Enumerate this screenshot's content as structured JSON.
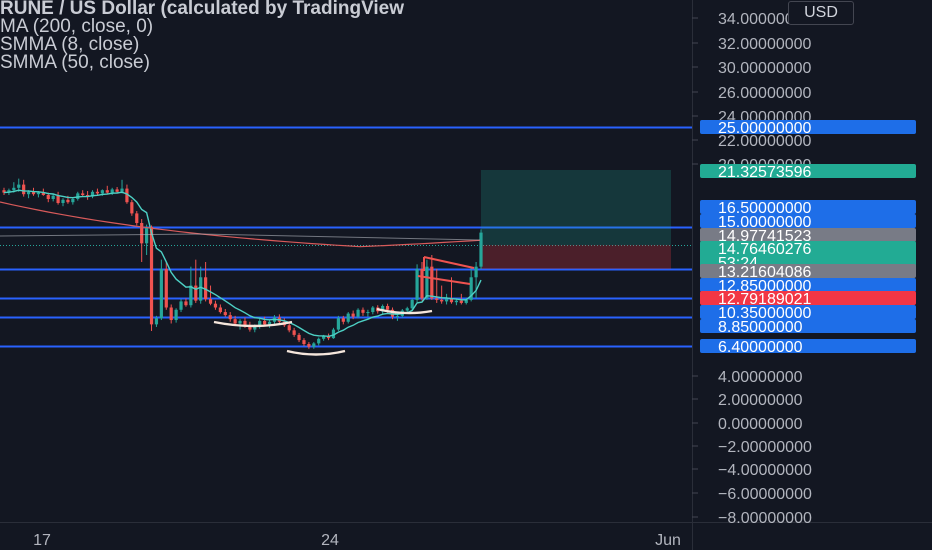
{
  "legend": {
    "title": "RUNE / US Dollar (calculated by TradingView",
    "ma": "MA (200, close, 0)",
    "smma8": "SMMA (8, close)",
    "smma50": "SMMA (50, close)"
  },
  "currency": "USD",
  "colors": {
    "background": "#131722",
    "up": "#26a69a",
    "down": "#ef5350",
    "ma200": "#b2b5be",
    "smma8": "#4dd0c4",
    "smma50": "#d85a5a",
    "hline": "#2962ff",
    "tag_blue": "#1e6ee8",
    "tag_gray": "#787b86",
    "tag_green": "#22ab94",
    "tag_red": "#f23645",
    "white_mark": "#f5e6dc"
  },
  "chart_data": {
    "type": "candlestick",
    "y_axis_ticks": [
      "34.00000000",
      "32.00000000",
      "30.00000000",
      "26.00000000",
      "24.00000000",
      "22.00000000",
      "20.00000000",
      "4.00000000",
      "2.00000000",
      "0.00000000",
      "−2.00000000",
      "−4.00000000",
      "−6.00000000",
      "−8.00000000"
    ],
    "x_axis_ticks": [
      "17",
      "24",
      "Jun"
    ],
    "horizontal_levels": [
      25.0,
      15.0,
      13.1,
      12.85,
      10.35,
      8.85,
      6.4
    ],
    "price_tags": [
      {
        "label": "25.00000000",
        "value": 25.0,
        "style": "blue"
      },
      {
        "label": "21.32573596",
        "value": 21.3257,
        "style": "green"
      },
      {
        "label": "16.50000000",
        "value": 16.5,
        "style": "blue"
      },
      {
        "label": "15.00000000",
        "value": 15.0,
        "style": "blue"
      },
      {
        "label": "14.97741523",
        "value": 14.9774,
        "style": "gray"
      },
      {
        "label": "14.76460276",
        "value": 14.7646,
        "style": "green",
        "sub": "53:24"
      },
      {
        "label": "13.21604086",
        "value": 13.216,
        "style": "gray"
      },
      {
        "label": "12.85000000",
        "value": 12.85,
        "style": "blue"
      },
      {
        "label": "12.79189021",
        "value": 12.7919,
        "style": "red"
      },
      {
        "label": "10.35000000",
        "value": 10.35,
        "style": "blue"
      },
      {
        "label": "8.85000000",
        "value": 8.85,
        "style": "blue"
      },
      {
        "label": "6.40000000",
        "value": 6.4,
        "style": "blue"
      }
    ],
    "position": {
      "entry": 14.76,
      "target": 21.3257,
      "stop": 12.55
    },
    "candles": [
      [
        19.6,
        19.9,
        19.0,
        19.3
      ],
      [
        19.3,
        19.8,
        19.0,
        19.6
      ],
      [
        19.6,
        20.4,
        19.3,
        19.9
      ],
      [
        19.9,
        20.7,
        19.4,
        20.2
      ],
      [
        20.2,
        20.6,
        18.8,
        19.1
      ],
      [
        19.1,
        19.6,
        18.6,
        19.4
      ],
      [
        19.4,
        19.9,
        18.9,
        19.1
      ],
      [
        19.1,
        19.5,
        18.7,
        19.3
      ],
      [
        19.3,
        19.8,
        18.9,
        19.0
      ],
      [
        19.0,
        19.3,
        18.1,
        18.5
      ],
      [
        18.5,
        19.1,
        18.2,
        18.9
      ],
      [
        18.9,
        19.4,
        17.8,
        18.0
      ],
      [
        18.0,
        18.6,
        17.6,
        18.4
      ],
      [
        18.4,
        18.9,
        17.9,
        18.1
      ],
      [
        18.1,
        18.7,
        17.8,
        18.5
      ],
      [
        18.5,
        19.4,
        18.3,
        19.2
      ],
      [
        19.2,
        19.6,
        18.8,
        19.0
      ],
      [
        19.0,
        19.5,
        18.4,
        18.8
      ],
      [
        18.8,
        19.6,
        18.6,
        19.4
      ],
      [
        19.4,
        19.8,
        19.0,
        19.2
      ],
      [
        19.2,
        19.7,
        18.9,
        19.6
      ],
      [
        19.6,
        20.1,
        19.1,
        19.3
      ],
      [
        19.3,
        19.9,
        19.0,
        19.7
      ],
      [
        19.7,
        20.0,
        19.2,
        19.4
      ],
      [
        19.4,
        20.6,
        19.2,
        19.8
      ],
      [
        19.8,
        20.2,
        17.9,
        18.1
      ],
      [
        18.1,
        18.4,
        16.4,
        16.7
      ],
      [
        16.7,
        17.0,
        15.2,
        15.5
      ],
      [
        15.5,
        16.0,
        13.5,
        14.3
      ],
      [
        14.3,
        15.3,
        13.8,
        15.0
      ],
      [
        15.0,
        15.2,
        8.7,
        9.5
      ],
      [
        9.5,
        10.5,
        9.2,
        10.2
      ],
      [
        10.2,
        13.6,
        10.0,
        13.2
      ],
      [
        13.2,
        13.5,
        11.3,
        11.6
      ],
      [
        11.6,
        12.0,
        9.6,
        10.0
      ],
      [
        10.0,
        11.5,
        9.7,
        11.3
      ],
      [
        11.3,
        12.7,
        11.0,
        12.4
      ],
      [
        12.4,
        12.8,
        11.7,
        11.9
      ],
      [
        11.9,
        13.3,
        11.6,
        13.0
      ],
      [
        13.0,
        13.6,
        12.2,
        12.5
      ],
      [
        12.5,
        13.3,
        12.1,
        13.1
      ],
      [
        13.1,
        13.5,
        12.4,
        12.7
      ],
      [
        12.7,
        13.0,
        11.9,
        12.1
      ],
      [
        12.1,
        12.5,
        11.3,
        11.6
      ],
      [
        11.6,
        12.0,
        10.8,
        11.0
      ],
      [
        11.0,
        11.4,
        10.4,
        10.6
      ],
      [
        10.6,
        11.0,
        9.8,
        10.1
      ],
      [
        10.1,
        10.5,
        9.3,
        9.6
      ],
      [
        9.6,
        10.1,
        8.9,
        9.9
      ],
      [
        9.9,
        10.3,
        9.1,
        9.4
      ],
      [
        9.4,
        9.8,
        8.6,
        8.9
      ],
      [
        8.9,
        9.5,
        8.5,
        9.3
      ],
      [
        9.3,
        10.2,
        9.0,
        9.9
      ],
      [
        9.9,
        10.4,
        9.3,
        9.5
      ],
      [
        9.5,
        10.1,
        9.1,
        9.8
      ],
      [
        9.8,
        10.6,
        9.4,
        10.3
      ],
      [
        10.3,
        10.7,
        9.6,
        9.8
      ],
      [
        9.8,
        10.2,
        9.2,
        9.4
      ],
      [
        9.4,
        9.7,
        8.5,
        8.8
      ],
      [
        8.8,
        9.1,
        7.8,
        8.1
      ],
      [
        8.1,
        8.4,
        7.0,
        7.3
      ],
      [
        7.3,
        7.6,
        6.4,
        6.7
      ],
      [
        6.7,
        7.0,
        6.0,
        6.3
      ],
      [
        6.3,
        7.0,
        6.0,
        6.8
      ],
      [
        6.8,
        7.7,
        6.5,
        7.5
      ],
      [
        7.5,
        8.1,
        7.2,
        7.9
      ],
      [
        7.9,
        8.3,
        7.3,
        7.6
      ],
      [
        7.6,
        9.1,
        7.5,
        8.9
      ],
      [
        8.9,
        10.5,
        8.7,
        10.2
      ],
      [
        10.2,
        10.5,
        9.5,
        9.8
      ],
      [
        9.8,
        11.0,
        9.6,
        10.8
      ],
      [
        10.8,
        11.2,
        10.1,
        10.4
      ],
      [
        10.4,
        11.5,
        10.2,
        11.3
      ],
      [
        11.3,
        11.6,
        10.5,
        10.9
      ],
      [
        10.9,
        11.3,
        10.4,
        11.0
      ],
      [
        11.0,
        11.8,
        10.7,
        11.6
      ],
      [
        11.6,
        11.9,
        10.8,
        11.1
      ],
      [
        11.1,
        12.0,
        10.8,
        11.8
      ],
      [
        11.8,
        12.1,
        10.9,
        11.3
      ],
      [
        11.3,
        11.6,
        10.1,
        10.4
      ],
      [
        10.4,
        10.8,
        9.9,
        10.5
      ],
      [
        10.5,
        11.4,
        10.3,
        11.2
      ],
      [
        11.2,
        11.7,
        10.9,
        11.5
      ],
      [
        11.5,
        12.8,
        11.3,
        12.6
      ],
      [
        12.6,
        13.4,
        12.3,
        13.2
      ],
      [
        13.2,
        13.5,
        12.5,
        12.8
      ],
      [
        12.8,
        13.6,
        12.6,
        13.3
      ],
      [
        13.3,
        13.8,
        12.6,
        12.8
      ],
      [
        12.8,
        13.2,
        12.2,
        12.6
      ],
      [
        12.6,
        13.0,
        12.1,
        12.4
      ],
      [
        12.4,
        12.9,
        12.0,
        12.7
      ],
      [
        12.7,
        13.1,
        12.1,
        12.3
      ],
      [
        12.3,
        12.7,
        11.9,
        12.5
      ],
      [
        12.5,
        12.9,
        12.0,
        12.2
      ],
      [
        12.2,
        12.8,
        12.0,
        12.6
      ],
      [
        12.6,
        13.3,
        12.4,
        13.1
      ],
      [
        13.1,
        13.5,
        12.8,
        13.3
      ],
      [
        13.3,
        14.9,
        13.2,
        14.76
      ]
    ]
  },
  "x_axis_labels": {
    "day17": "17",
    "day24": "24",
    "jun": "Jun"
  }
}
